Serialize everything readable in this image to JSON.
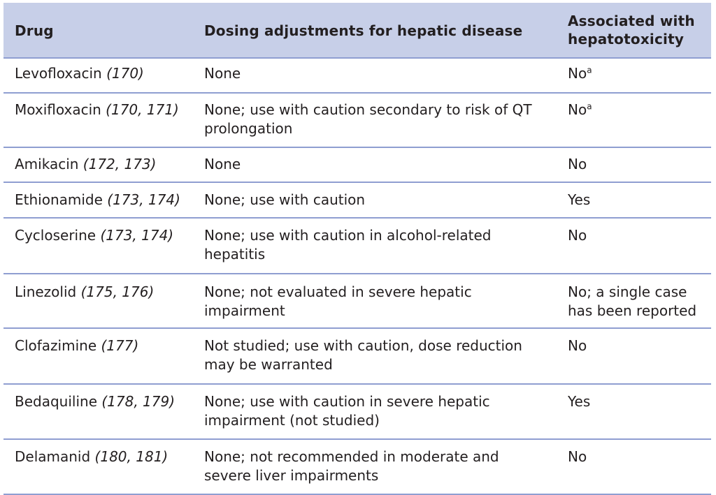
{
  "table": {
    "headers": {
      "drug": "Drug",
      "dosing": "Dosing adjustments for hepatic disease",
      "hepatotoxicity_line1": "Associated with",
      "hepatotoxicity_line2": "hepatotoxicity"
    },
    "rows": [
      {
        "drug": "Levofloxacin",
        "refs": "(170)",
        "dosing_1": "None",
        "dosing_2": "",
        "hepato_1": "No",
        "hepato_sup": "a",
        "hepato_2": ""
      },
      {
        "drug": "Moxifloxacin",
        "refs": "(170, 171)",
        "dosing_1": "None; use with caution secondary to risk of QT",
        "dosing_2": "prolongation",
        "hepato_1": "No",
        "hepato_sup": "a",
        "hepato_2": ""
      },
      {
        "drug": "Amikacin",
        "refs": "(172, 173)",
        "dosing_1": "None",
        "dosing_2": "",
        "hepato_1": "No",
        "hepato_sup": "",
        "hepato_2": ""
      },
      {
        "drug": "Ethionamide",
        "refs": "(173, 174)",
        "dosing_1": "None; use with caution",
        "dosing_2": "",
        "hepato_1": "Yes",
        "hepato_sup": "",
        "hepato_2": ""
      },
      {
        "drug": "Cycloserine",
        "refs": "(173, 174)",
        "dosing_1": "None; use with caution in alcohol-related",
        "dosing_2": "hepatitis",
        "hepato_1": "No",
        "hepato_sup": "",
        "hepato_2": ""
      },
      {
        "drug": "Linezolid",
        "refs": "(175, 176)",
        "dosing_1": "None; not evaluated in severe hepatic",
        "dosing_2": "impairment",
        "hepato_1": "No; a single case",
        "hepato_sup": "",
        "hepato_2": "has been reported"
      },
      {
        "drug": "Clofazimine",
        "refs": "(177)",
        "dosing_1": "Not studied; use with caution, dose reduction",
        "dosing_2": "may be warranted",
        "hepato_1": "No",
        "hepato_sup": "",
        "hepato_2": ""
      },
      {
        "drug": "Bedaquiline",
        "refs": "(178, 179)",
        "dosing_1": "None; use with caution in severe hepatic",
        "dosing_2": "impairment (not studied)",
        "hepato_1": "Yes",
        "hepato_sup": "",
        "hepato_2": ""
      },
      {
        "drug": "Delamanid",
        "refs": "(180, 181)",
        "dosing_1": "None; not recommended in moderate and",
        "dosing_2": "severe liver impairments",
        "hepato_1": "No",
        "hepato_sup": "",
        "hepato_2": ""
      }
    ]
  }
}
